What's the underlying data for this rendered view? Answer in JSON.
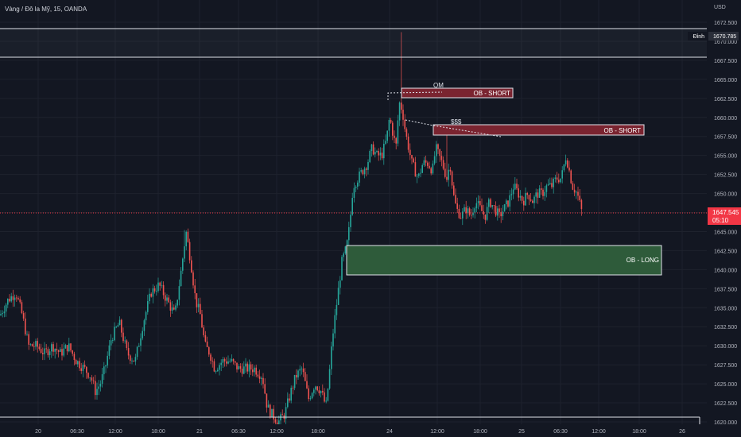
{
  "header": {
    "symbol_line": "Vàng / Đô la Mỹ, 15, OANDA"
  },
  "axis": {
    "currency": "USD",
    "y_ticks": [
      "1672.500",
      "1670.000",
      "1667.500",
      "1665.000",
      "1662.500",
      "1660.000",
      "1657.500",
      "1655.000",
      "1652.500",
      "1650.000",
      "1647.500",
      "1645.000",
      "1642.500",
      "1640.000",
      "1637.500",
      "1635.000",
      "1632.500",
      "1630.000",
      "1627.500",
      "1625.000",
      "1622.500",
      "1620.000"
    ],
    "x_ticks": [
      "20",
      "06:30",
      "12:00",
      "18:00",
      "21",
      "06:30",
      "12:00",
      "18:00",
      "24",
      "12:00",
      "18:00",
      "25",
      "06:30",
      "12:00",
      "18:00",
      "26"
    ],
    "top_label": "Đỉnh",
    "top_value": "1670.785",
    "last_price": "1647.545",
    "countdown": "05:10"
  },
  "zones": {
    "ob_short_1": "OB - SHORT",
    "ob_short_2": "OB - SHORT",
    "ob_long": "OB - LONG",
    "qm": "QM",
    "sss": "$$$"
  },
  "colors": {
    "background": "#131722",
    "up": "#26a69a",
    "down": "#ef5350",
    "short_zone": "#7a2430",
    "long_zone": "#2e5b3a",
    "price_tag": "#f23645"
  },
  "chart_data": {
    "type": "candlestick",
    "title": "Vàng / Đô la Mỹ, 15, OANDA",
    "ylim": [
      1620,
      1673.5
    ],
    "x": [
      "20",
      "06:30",
      "12:00",
      "18:00",
      "21",
      "06:30",
      "12:00",
      "18:00",
      "24",
      "12:00",
      "18:00",
      "25",
      "06:30",
      "12:00",
      "18:00",
      "26"
    ],
    "close_path": [
      [
        0,
        1634
      ],
      [
        10,
        1636
      ],
      [
        20,
        1637
      ],
      [
        28,
        1634
      ],
      [
        36,
        1630
      ],
      [
        46,
        1630
      ],
      [
        56,
        1629
      ],
      [
        66,
        1630
      ],
      [
        76,
        1629
      ],
      [
        86,
        1630
      ],
      [
        96,
        1628
      ],
      [
        106,
        1627
      ],
      [
        114,
        1626
      ],
      [
        120,
        1624
      ],
      [
        126,
        1625
      ],
      [
        132,
        1627
      ],
      [
        140,
        1631
      ],
      [
        150,
        1633
      ],
      [
        160,
        1629
      ],
      [
        170,
        1628
      ],
      [
        180,
        1633
      ],
      [
        190,
        1637
      ],
      [
        200,
        1638
      ],
      [
        210,
        1636
      ],
      [
        220,
        1634
      ],
      [
        228,
        1640
      ],
      [
        234,
        1645
      ],
      [
        240,
        1641
      ],
      [
        246,
        1636
      ],
      [
        252,
        1634
      ],
      [
        258,
        1630
      ],
      [
        264,
        1629
      ],
      [
        270,
        1627
      ],
      [
        280,
        1628
      ],
      [
        290,
        1628
      ],
      [
        300,
        1627
      ],
      [
        310,
        1627
      ],
      [
        320,
        1627
      ],
      [
        330,
        1626
      ],
      [
        336,
        1622
      ],
      [
        342,
        1621
      ],
      [
        350,
        1620
      ],
      [
        358,
        1621
      ],
      [
        366,
        1624
      ],
      [
        372,
        1626
      ],
      [
        380,
        1627
      ],
      [
        388,
        1623
      ],
      [
        396,
        1625
      ],
      [
        404,
        1624
      ],
      [
        410,
        1622
      ],
      [
        414,
        1626
      ],
      [
        418,
        1631
      ],
      [
        424,
        1636
      ],
      [
        430,
        1641
      ],
      [
        436,
        1643
      ],
      [
        440,
        1646
      ],
      [
        444,
        1651
      ],
      [
        450,
        1652
      ],
      [
        456,
        1653
      ],
      [
        462,
        1654
      ],
      [
        468,
        1656
      ],
      [
        474,
        1655
      ],
      [
        480,
        1655
      ],
      [
        486,
        1657
      ],
      [
        490,
        1660
      ],
      [
        494,
        1658
      ],
      [
        498,
        1656
      ],
      [
        502,
        1662
      ],
      [
        506,
        1661
      ],
      [
        510,
        1658
      ],
      [
        514,
        1656
      ],
      [
        518,
        1654
      ],
      [
        522,
        1653
      ],
      [
        526,
        1652
      ],
      [
        532,
        1654
      ],
      [
        538,
        1654
      ],
      [
        544,
        1653
      ],
      [
        548,
        1656
      ],
      [
        552,
        1655
      ],
      [
        556,
        1654
      ],
      [
        562,
        1652
      ],
      [
        566,
        1654
      ],
      [
        570,
        1650
      ],
      [
        574,
        1648
      ],
      [
        580,
        1647
      ],
      [
        586,
        1648
      ],
      [
        592,
        1647
      ],
      [
        598,
        1649
      ],
      [
        604,
        1648
      ],
      [
        610,
        1647
      ],
      [
        616,
        1649
      ],
      [
        622,
        1648
      ],
      [
        628,
        1647
      ],
      [
        634,
        1648
      ],
      [
        640,
        1649
      ],
      [
        646,
        1651
      ],
      [
        652,
        1650
      ],
      [
        658,
        1649
      ],
      [
        664,
        1650
      ],
      [
        670,
        1649
      ],
      [
        676,
        1650
      ],
      [
        682,
        1650
      ],
      [
        688,
        1651
      ],
      [
        694,
        1651
      ],
      [
        700,
        1652
      ],
      [
        706,
        1652
      ],
      [
        712,
        1655
      ],
      [
        716,
        1653
      ],
      [
        720,
        1651
      ],
      [
        726,
        1650
      ],
      [
        732,
        1647.5
      ]
    ],
    "zones": [
      {
        "label": "OB - SHORT",
        "from": 1663.6,
        "to": 1662.5
      },
      {
        "label": "OB - SHORT",
        "from": 1659.3,
        "to": 1657.7
      },
      {
        "label": "OB - LONG",
        "from": 1643.3,
        "to": 1639.3
      }
    ],
    "current_price": 1647.545,
    "top_level": 1670.785
  }
}
